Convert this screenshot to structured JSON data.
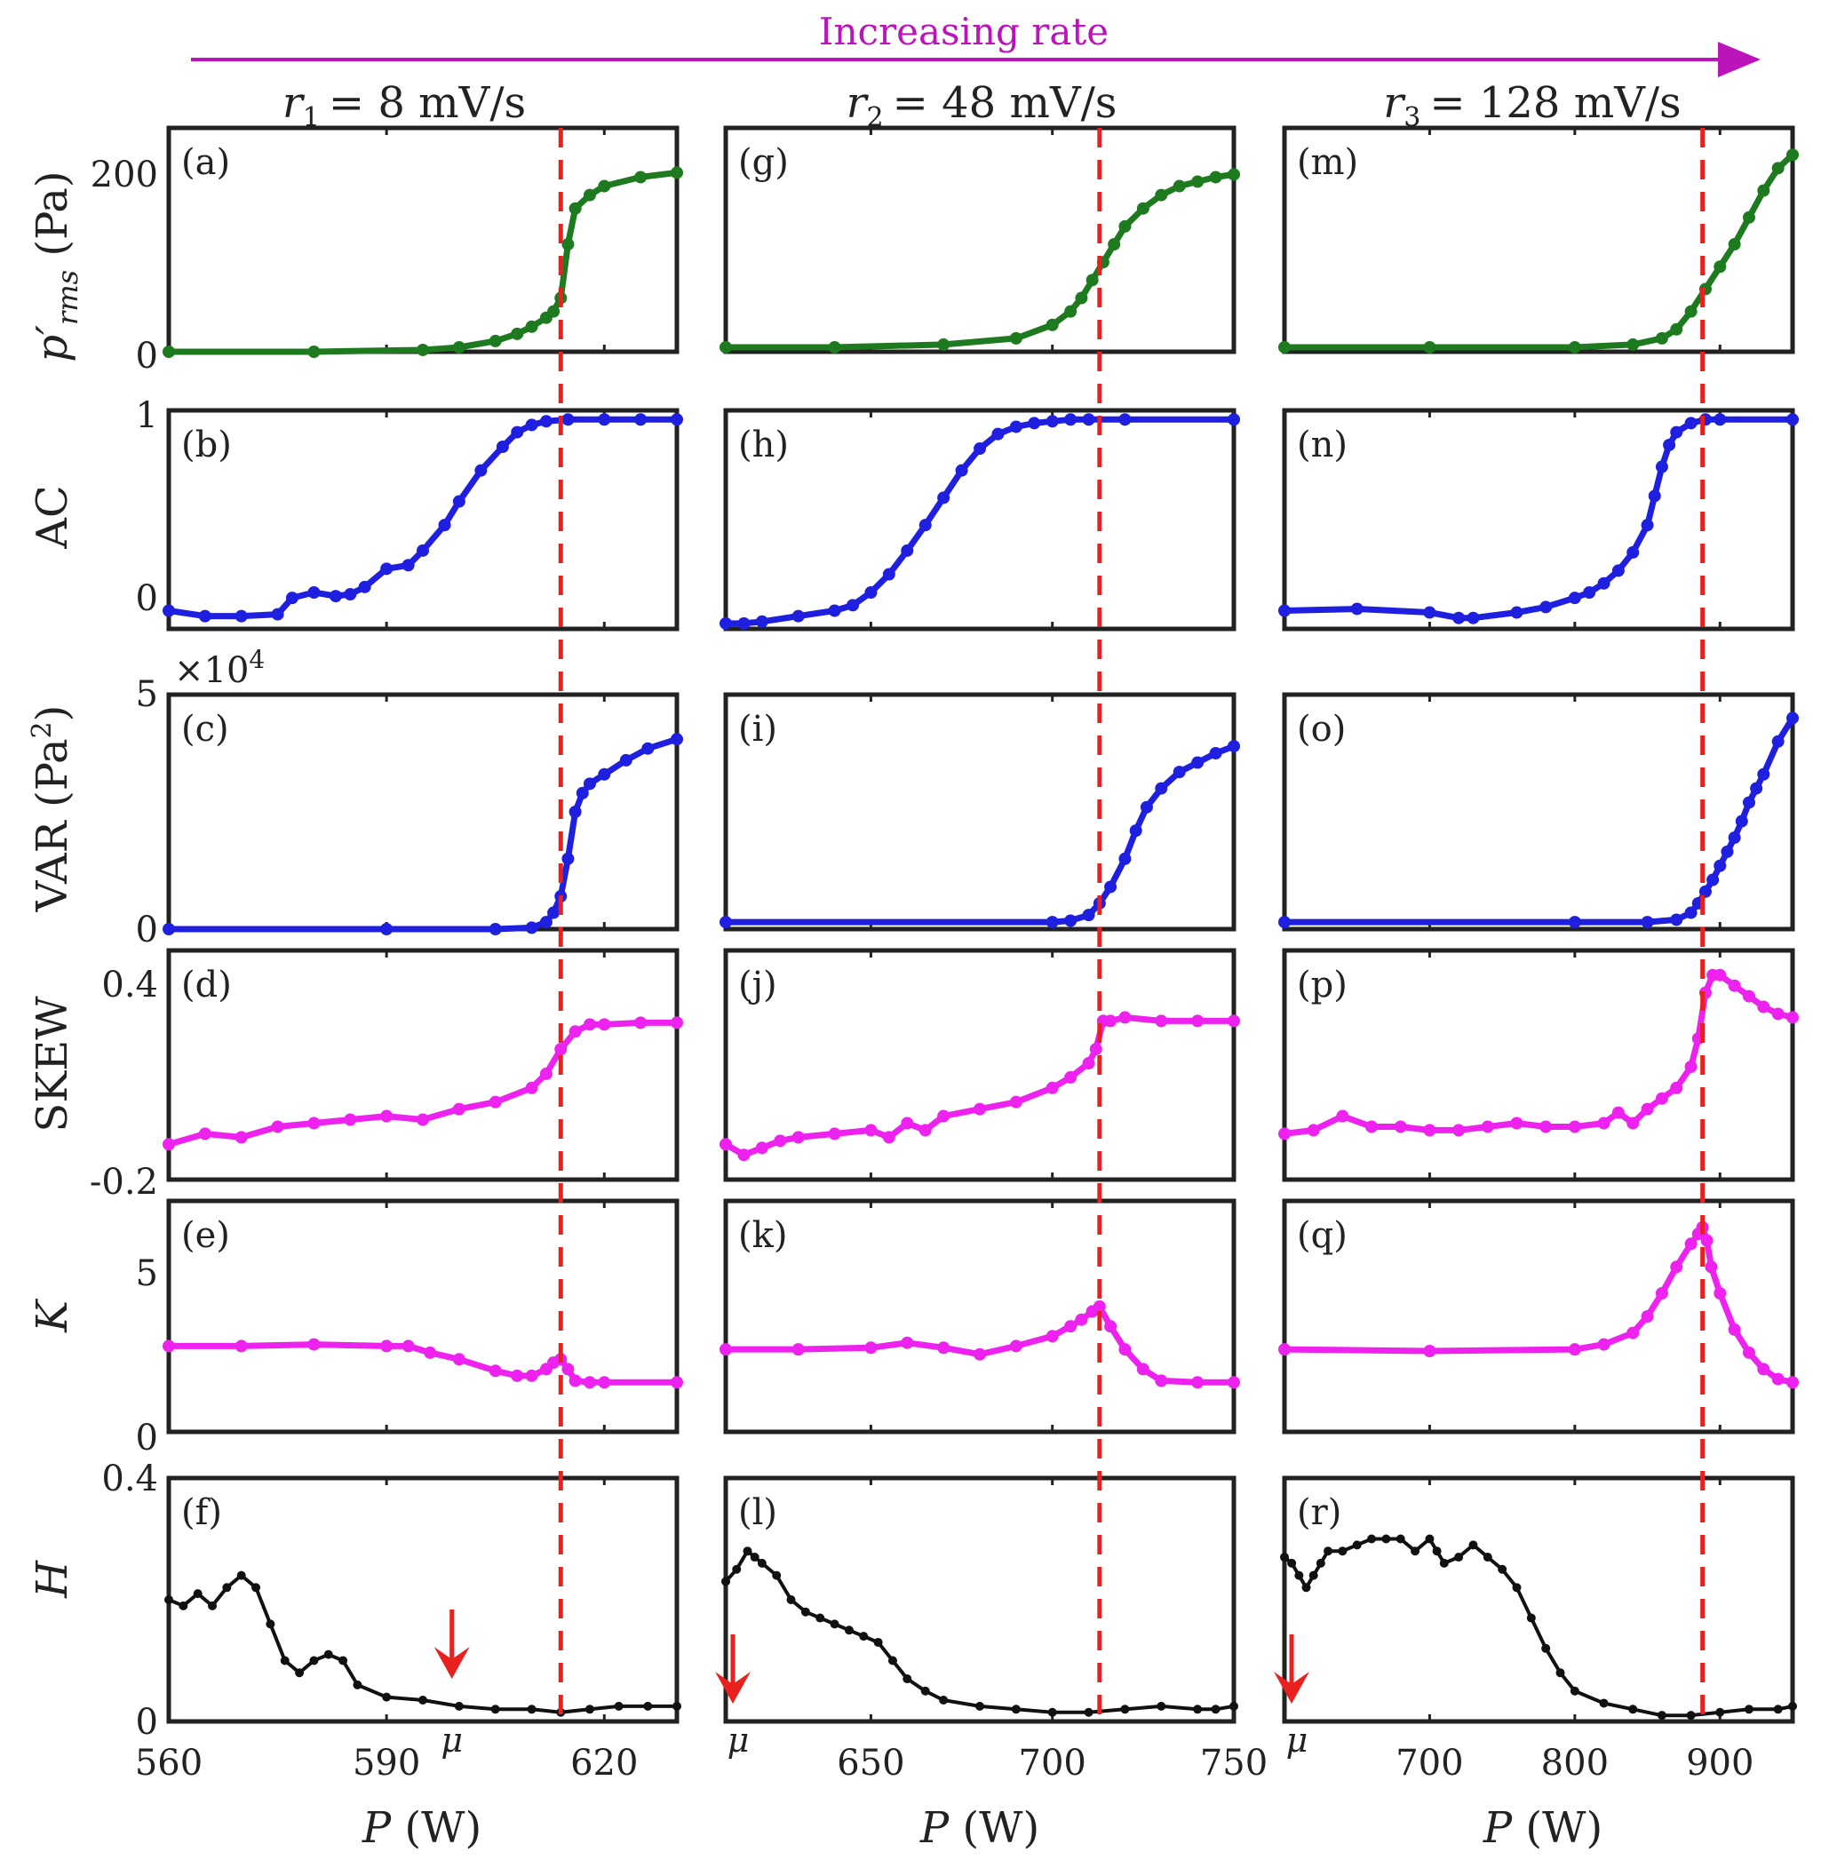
{
  "header": {
    "banner_label": "Increasing rate",
    "banner_color": "#bb14bb",
    "columns": [
      {
        "rate_sym": "r",
        "rate_sub": "1",
        "rate_text": "= 8 mV/s"
      },
      {
        "rate_sym": "r",
        "rate_sub": "2",
        "rate_text": "= 48 mV/s"
      },
      {
        "rate_sym": "r",
        "rate_sub": "3",
        "rate_text": "= 128 mV/s"
      }
    ]
  },
  "rows": [
    {
      "key": "prms",
      "ylabel_sym": "p′",
      "ylabel_sub": "rms",
      "ylabel_unit": " (Pa)",
      "ticks": [
        "200",
        "0"
      ],
      "multiplier": ""
    },
    {
      "key": "ac",
      "ylabel_sym": "AC",
      "ylabel_sub": "",
      "ylabel_unit": "",
      "ticks": [
        "1",
        "0"
      ],
      "multiplier": ""
    },
    {
      "key": "var",
      "ylabel_sym": "VAR (Pa",
      "ylabel_sub": "",
      "ylabel_sup": "2",
      "ylabel_unit": ")",
      "ticks": [
        "5",
        "0"
      ],
      "multiplier": "×10",
      "multiplier_exp": "4"
    },
    {
      "key": "skew",
      "ylabel_sym": "SKEW",
      "ylabel_sub": "",
      "ylabel_unit": "",
      "ticks": [
        "0.4",
        "-0.2"
      ],
      "multiplier": ""
    },
    {
      "key": "k",
      "ylabel_sym": "K",
      "ylabel_sub": "",
      "ylabel_unit": "",
      "ticks": [
        "5",
        "0"
      ],
      "multiplier": ""
    },
    {
      "key": "h",
      "ylabel_sym": "H",
      "ylabel_sub": "",
      "ylabel_unit": "",
      "ticks": [
        "0.4",
        "0"
      ],
      "multiplier": ""
    }
  ],
  "panel_labels": [
    [
      "(a)",
      "(b)",
      "(c)",
      "(d)",
      "(e)",
      "(f)"
    ],
    [
      "(g)",
      "(h)",
      "(i)",
      "(j)",
      "(k)",
      "(l)"
    ],
    [
      "(m)",
      "(n)",
      "(o)",
      "(p)",
      "(q)",
      "(r)"
    ]
  ],
  "x_axis": {
    "label_sym": "P",
    "label_unit": " (W)",
    "ticks": [
      [
        "560",
        "590",
        "620"
      ],
      [
        "650",
        "700",
        "750"
      ],
      [
        "700",
        "800",
        "900"
      ]
    ]
  },
  "mu_label": "μ",
  "colors": {
    "prms": "#1e7a1e",
    "ac": "#1f1fe0",
    "var": "#1f1fe0",
    "skew": "#ee22ee",
    "k": "#ee22ee",
    "h": "#111111",
    "critical_line": "#e8201e",
    "mu_arrow": "#e8201e"
  },
  "chart_data": {
    "type": "line",
    "title": "Increasing rate",
    "xlabel": "P (W)",
    "columns": [
      {
        "rate": "r1 = 8 mV/s",
        "xlim": [
          560,
          630
        ],
        "x_ticks": [
          560,
          590,
          620
        ],
        "critical_P": 614,
        "mu_P": 599,
        "series": {
          "prms": {
            "x": [
              560,
              580,
              595,
              600,
              605,
              608,
              610,
              612,
              613,
              614,
              615,
              616,
              618,
              620,
              625,
              630
            ],
            "y": [
              0,
              0,
              2,
              5,
              12,
              20,
              28,
              38,
              45,
              60,
              120,
              160,
              175,
              185,
              195,
              200
            ]
          },
          "ac": {
            "x": [
              560,
              565,
              570,
              575,
              577,
              580,
              583,
              585,
              587,
              590,
              593,
              595,
              598,
              600,
              603,
              606,
              608,
              610,
              612,
              615,
              620,
              625,
              630
            ],
            "y": [
              -0.05,
              -0.08,
              -0.08,
              -0.07,
              0.02,
              0.05,
              0.03,
              0.04,
              0.08,
              0.18,
              0.2,
              0.28,
              0.42,
              0.55,
              0.72,
              0.85,
              0.93,
              0.97,
              0.99,
              1.0,
              1.0,
              1.0,
              1.0
            ]
          },
          "var": {
            "x": [
              560,
              590,
              605,
              610,
              612,
              613,
              614,
              615,
              616,
              617,
              618,
              620,
              623,
              626,
              630
            ],
            "y": [
              0,
              0,
              0,
              300,
              1500,
              3500,
              7000,
              15000,
              25000,
              29000,
              31000,
              33000,
              36000,
              38500,
              40500
            ]
          },
          "skew": {
            "x": [
              560,
              565,
              570,
              575,
              580,
              585,
              590,
              595,
              600,
              605,
              610,
              612,
              614,
              616,
              618,
              620,
              625,
              630
            ],
            "y": [
              -0.1,
              -0.07,
              -0.08,
              -0.05,
              -0.04,
              -0.03,
              -0.02,
              -0.03,
              0.0,
              0.02,
              0.06,
              0.1,
              0.17,
              0.22,
              0.24,
              0.24,
              0.245,
              0.245
            ]
          },
          "k": {
            "x": [
              560,
              570,
              580,
              590,
              593,
              596,
              600,
              605,
              608,
              610,
              612,
              613,
              614,
              615,
              616,
              618,
              620,
              630
            ],
            "y": [
              2.6,
              2.6,
              2.65,
              2.6,
              2.6,
              2.4,
              2.2,
              1.85,
              1.7,
              1.7,
              1.9,
              2.1,
              2.2,
              1.9,
              1.55,
              1.5,
              1.5,
              1.5
            ]
          },
          "h": {
            "x": [
              560,
              562,
              564,
              566,
              568,
              570,
              572,
              574,
              576,
              578,
              580,
              582,
              584,
              586,
              590,
              595,
              600,
              605,
              610,
              614,
              618,
              622,
              626,
              630
            ],
            "y": [
              0.2,
              0.19,
              0.21,
              0.19,
              0.22,
              0.24,
              0.22,
              0.16,
              0.1,
              0.08,
              0.1,
              0.11,
              0.1,
              0.06,
              0.04,
              0.035,
              0.025,
              0.02,
              0.02,
              0.015,
              0.02,
              0.025,
              0.025,
              0.025
            ]
          }
        }
      },
      {
        "rate": "r2 = 48 mV/s",
        "xlim": [
          610,
          750
        ],
        "x_ticks": [
          650,
          700,
          750
        ],
        "critical_P": 713,
        "mu_P": 610,
        "series": {
          "prms": {
            "x": [
              610,
              640,
              670,
              690,
              700,
              705,
              708,
              711,
              714,
              717,
              720,
              725,
              730,
              735,
              740,
              745,
              750
            ],
            "y": [
              5,
              5,
              8,
              15,
              30,
              45,
              60,
              80,
              100,
              120,
              140,
              160,
              175,
              185,
              190,
              195,
              198
            ]
          },
          "ac": {
            "x": [
              610,
              615,
              620,
              630,
              640,
              645,
              650,
              655,
              660,
              665,
              670,
              675,
              680,
              685,
              690,
              695,
              700,
              705,
              710,
              720,
              750
            ],
            "y": [
              -0.12,
              -0.12,
              -0.11,
              -0.08,
              -0.05,
              -0.02,
              0.05,
              0.15,
              0.28,
              0.42,
              0.57,
              0.72,
              0.84,
              0.92,
              0.96,
              0.98,
              0.99,
              1.0,
              1.0,
              1.0,
              1.0
            ]
          },
          "var": {
            "x": [
              610,
              700,
              705,
              710,
              713,
              716,
              720,
              723,
              726,
              730,
              735,
              740,
              745,
              750
            ],
            "y": [
              1500,
              1500,
              1800,
              3000,
              5500,
              9000,
              15000,
              21000,
              26000,
              30000,
              33500,
              35500,
              37500,
              39000
            ]
          },
          "skew": {
            "x": [
              610,
              615,
              620,
              625,
              630,
              640,
              650,
              655,
              660,
              665,
              670,
              680,
              690,
              700,
              705,
              710,
              712,
              714,
              716,
              720,
              730,
              740,
              750
            ],
            "y": [
              -0.1,
              -0.13,
              -0.11,
              -0.09,
              -0.08,
              -0.07,
              -0.06,
              -0.08,
              -0.04,
              -0.06,
              -0.02,
              0.0,
              0.02,
              0.06,
              0.09,
              0.13,
              0.17,
              0.25,
              0.25,
              0.26,
              0.25,
              0.25,
              0.25
            ]
          },
          "k": {
            "x": [
              610,
              630,
              650,
              660,
              670,
              680,
              690,
              700,
              705,
              708,
              711,
              713,
              716,
              720,
              725,
              730,
              740,
              750
            ],
            "y": [
              2.5,
              2.5,
              2.55,
              2.7,
              2.55,
              2.35,
              2.6,
              2.9,
              3.2,
              3.4,
              3.65,
              3.8,
              3.2,
              2.5,
              1.9,
              1.55,
              1.5,
              1.5
            ]
          },
          "h": {
            "x": [
              610,
              613,
              616,
              618,
              620,
              624,
              628,
              632,
              636,
              640,
              644,
              648,
              652,
              656,
              660,
              665,
              670,
              680,
              690,
              700,
              710,
              720,
              730,
              740,
              745,
              750
            ],
            "y": [
              0.23,
              0.25,
              0.28,
              0.27,
              0.26,
              0.24,
              0.2,
              0.18,
              0.17,
              0.16,
              0.15,
              0.14,
              0.13,
              0.1,
              0.07,
              0.05,
              0.035,
              0.025,
              0.02,
              0.015,
              0.015,
              0.02,
              0.025,
              0.02,
              0.02,
              0.025
            ]
          }
        }
      },
      {
        "rate": "r3 = 128 mV/s",
        "xlim": [
          600,
          950
        ],
        "x_ticks": [
          700,
          800,
          900
        ],
        "critical_P": 888,
        "mu_P": 600,
        "series": {
          "prms": {
            "x": [
              600,
              700,
              800,
              840,
              860,
              870,
              880,
              890,
              900,
              910,
              920,
              930,
              940,
              950
            ],
            "y": [
              5,
              5,
              5,
              8,
              15,
              25,
              45,
              70,
              95,
              120,
              150,
              180,
              205,
              220
            ]
          },
          "ac": {
            "x": [
              600,
              650,
              700,
              720,
              730,
              760,
              780,
              800,
              810,
              820,
              830,
              840,
              850,
              855,
              860,
              865,
              870,
              880,
              890,
              900,
              950
            ],
            "y": [
              -0.05,
              -0.04,
              -0.06,
              -0.09,
              -0.09,
              -0.06,
              -0.03,
              0.02,
              0.05,
              0.1,
              0.17,
              0.27,
              0.42,
              0.58,
              0.74,
              0.86,
              0.93,
              0.98,
              1.0,
              1.0,
              1.0
            ]
          },
          "var": {
            "x": [
              600,
              800,
              850,
              870,
              880,
              885,
              890,
              895,
              900,
              905,
              910,
              915,
              920,
              925,
              930,
              940,
              950
            ],
            "y": [
              1500,
              1500,
              1500,
              2000,
              3500,
              5500,
              8000,
              10500,
              13500,
              16500,
              19500,
              23000,
              27000,
              30000,
              33000,
              40000,
              45000
            ]
          },
          "skew": {
            "x": [
              600,
              620,
              640,
              660,
              680,
              700,
              720,
              740,
              760,
              780,
              800,
              820,
              830,
              840,
              850,
              860,
              870,
              880,
              885,
              890,
              895,
              900,
              910,
              920,
              930,
              940,
              950
            ],
            "y": [
              -0.07,
              -0.06,
              -0.02,
              -0.05,
              -0.05,
              -0.06,
              -0.06,
              -0.05,
              -0.04,
              -0.05,
              -0.05,
              -0.04,
              -0.01,
              -0.04,
              0.0,
              0.03,
              0.06,
              0.12,
              0.2,
              0.33,
              0.38,
              0.38,
              0.35,
              0.32,
              0.29,
              0.27,
              0.26
            ]
          },
          "k": {
            "x": [
              600,
              700,
              800,
              820,
              840,
              850,
              860,
              870,
              880,
              885,
              888,
              891,
              894,
              900,
              910,
              920,
              930,
              940,
              950
            ],
            "y": [
              2.5,
              2.45,
              2.5,
              2.65,
              3.0,
              3.5,
              4.2,
              5.0,
              5.7,
              6.0,
              6.2,
              5.8,
              5.0,
              4.2,
              3.1,
              2.4,
              1.9,
              1.6,
              1.5
            ]
          },
          "h": {
            "x": [
              600,
              605,
              610,
              615,
              620,
              625,
              630,
              640,
              650,
              660,
              670,
              680,
              690,
              700,
              705,
              710,
              720,
              730,
              740,
              750,
              760,
              770,
              780,
              790,
              800,
              820,
              840,
              860,
              880,
              900,
              920,
              940,
              950
            ],
            "y": [
              0.27,
              0.26,
              0.24,
              0.22,
              0.24,
              0.26,
              0.28,
              0.28,
              0.29,
              0.3,
              0.3,
              0.3,
              0.28,
              0.3,
              0.28,
              0.26,
              0.27,
              0.29,
              0.27,
              0.25,
              0.22,
              0.17,
              0.12,
              0.08,
              0.05,
              0.03,
              0.02,
              0.01,
              0.01,
              0.015,
              0.02,
              0.02,
              0.025
            ]
          }
        }
      }
    ],
    "y_ranges": {
      "prms": [
        0,
        250
      ],
      "ac": [
        -0.15,
        1.05
      ],
      "var": [
        0,
        50000
      ],
      "skew": [
        -0.2,
        0.45
      ],
      "k": [
        0,
        7
      ],
      "h": [
        0,
        0.4
      ]
    },
    "y_ticks": {
      "prms": [
        0,
        200
      ],
      "ac": [
        0,
        1
      ],
      "var": [
        0,
        5
      ],
      "skew": [
        -0.2,
        0.4
      ],
      "k": [
        0,
        5
      ],
      "h": [
        0,
        0.4
      ]
    }
  }
}
